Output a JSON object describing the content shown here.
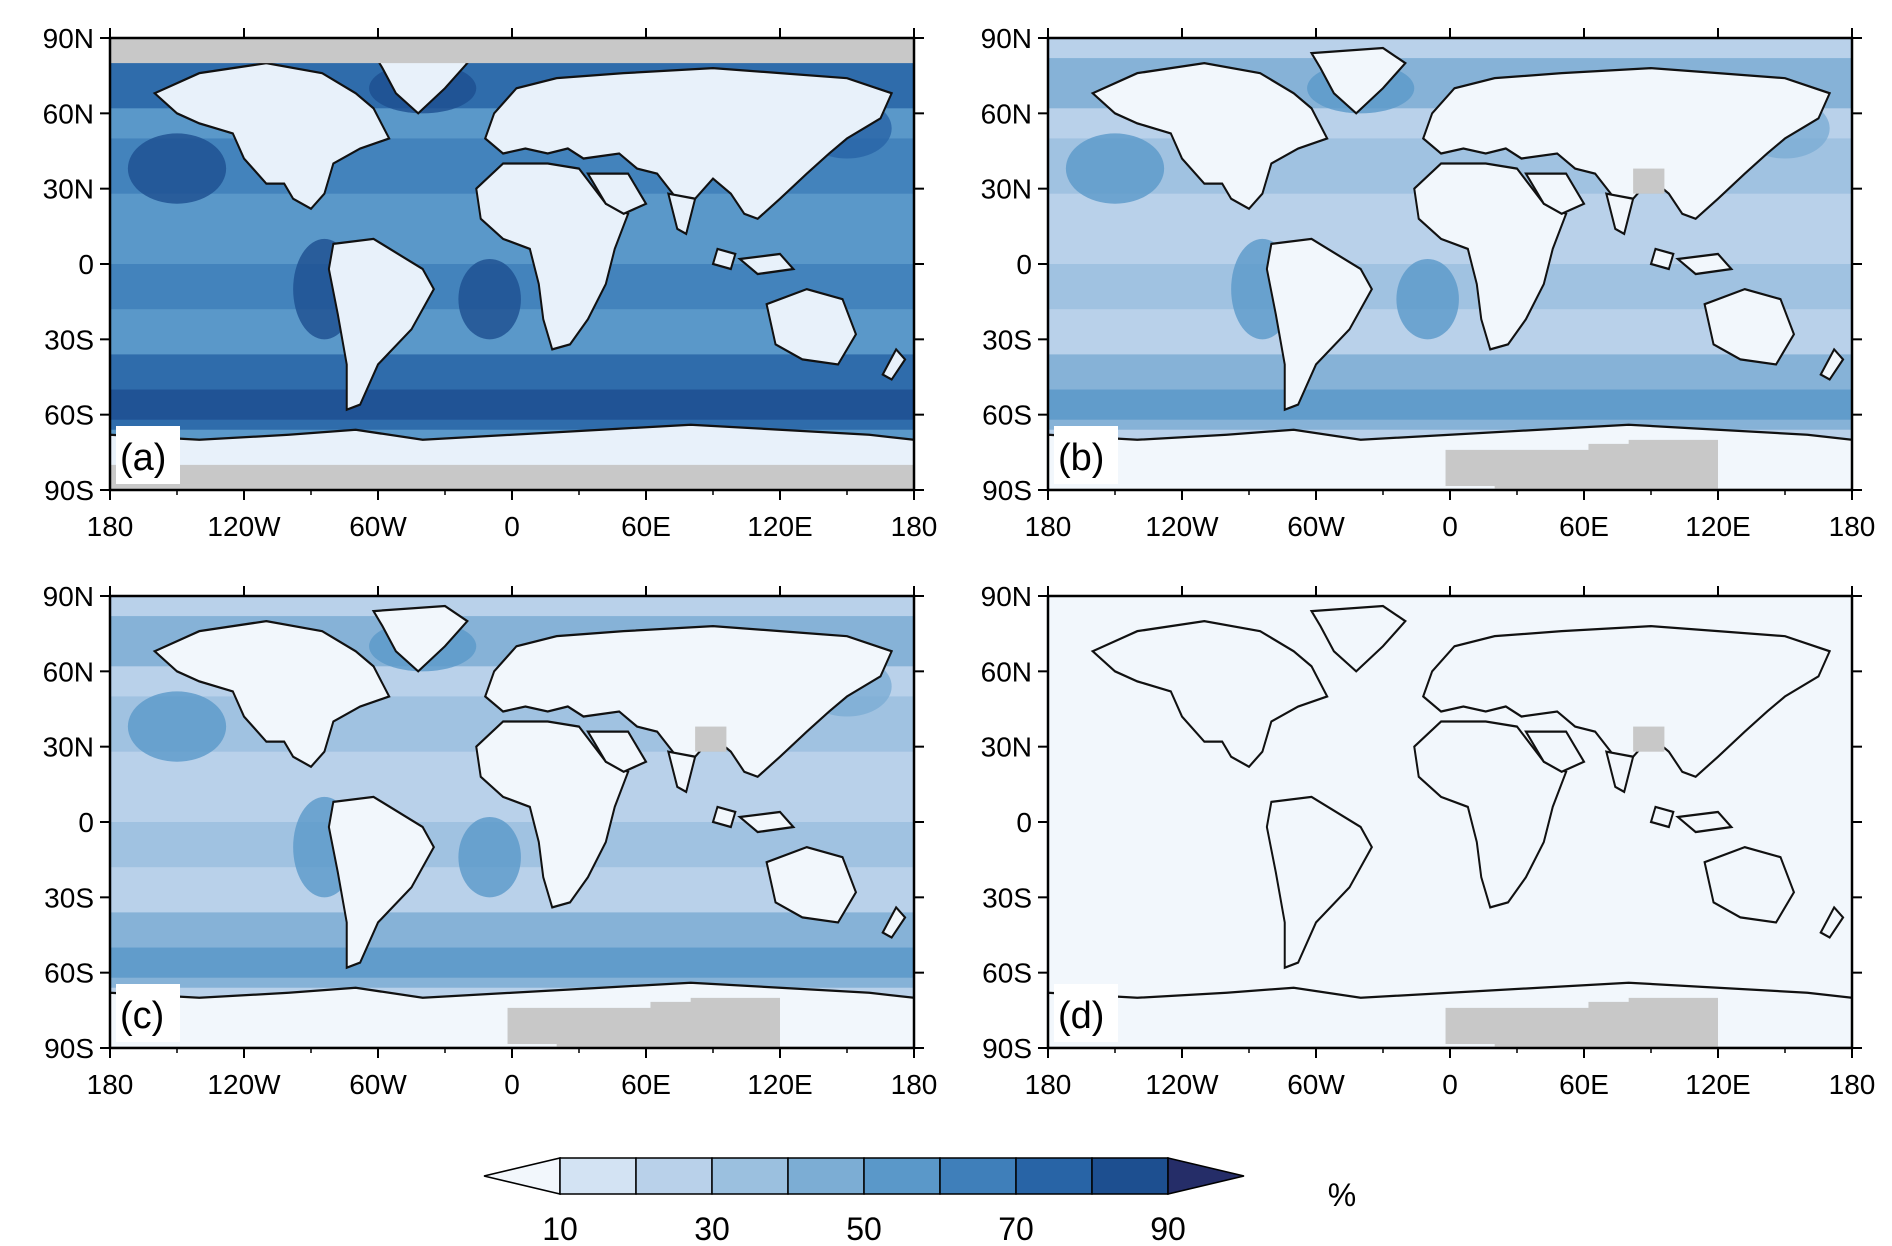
{
  "units": "%",
  "colorbar": {
    "labels": [
      "10",
      "30",
      "50",
      "70",
      "90"
    ],
    "colors": [
      "#f2f7fc",
      "#d3e3f3",
      "#b9d1ea",
      "#9bc0df",
      "#7cadd4",
      "#5a98c9",
      "#3f7fba",
      "#2864a6",
      "#1d4f90",
      "#252d68"
    ]
  },
  "lat_ticks": [
    "90N",
    "60N",
    "30N",
    "0",
    "30S",
    "60S",
    "90S"
  ],
  "lon_ticks": [
    "180",
    "120W",
    "60W",
    "0",
    "60E",
    "120E",
    "180"
  ],
  "missing_color": "#c8c8c8",
  "panels": [
    {
      "label": "(a)",
      "fill_level": 6,
      "land_color": "#e8f1fa",
      "polar_mask": true,
      "tibet_mask": false,
      "antarctic_mask": false
    },
    {
      "label": "(b)",
      "fill_level": 3,
      "land_color": "#f2f7fc",
      "polar_mask": false,
      "tibet_mask": true,
      "antarctic_mask": true
    },
    {
      "label": "(c)",
      "fill_level": 3,
      "land_color": "#f2f7fc",
      "polar_mask": false,
      "tibet_mask": true,
      "antarctic_mask": true
    },
    {
      "label": "(d)",
      "fill_level": 0,
      "land_color": "#f2f7fc",
      "polar_mask": false,
      "tibet_mask": true,
      "antarctic_mask": true
    }
  ]
}
